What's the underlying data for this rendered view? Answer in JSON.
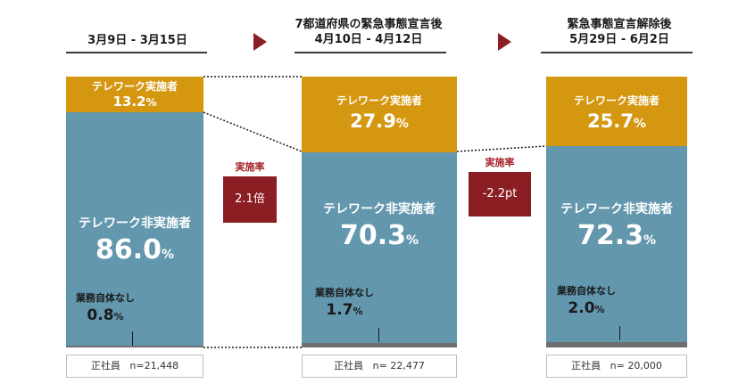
{
  "chart_data": {
    "type": "bar",
    "stacked": true,
    "categories": [
      "3月9日 - 3月15日",
      "4月10日 - 4月12日",
      "5月29日 - 6月2日"
    ],
    "period_headers": [
      {
        "line1": "",
        "line2": "3月9日 - 3月15日"
      },
      {
        "line1": "7都道府県の緊急事態宣言後",
        "line2": "4月10日 - 4月12日"
      },
      {
        "line1": "緊急事態宣言解除後",
        "line2": "5月29日 - 6月2日"
      }
    ],
    "series": [
      {
        "name": "テレワーク実施者",
        "values": [
          13.2,
          27.9,
          25.7
        ],
        "color": "#d59710"
      },
      {
        "name": "テレワーク非実施者",
        "values": [
          86.0,
          70.3,
          72.3
        ],
        "color": "#6397ad"
      },
      {
        "name": "業務自体なし",
        "values": [
          0.8,
          1.7,
          2.0
        ],
        "color": "#6e6e6e"
      }
    ],
    "value_labels": {
      "telework": [
        "13.2",
        "27.9",
        "25.7"
      ],
      "non_telework": [
        "86.0",
        "70.3",
        "72.3"
      ],
      "no_work": [
        "0.8",
        "1.7",
        "2.0"
      ],
      "unit": "%"
    },
    "changes": [
      {
        "label": "実施率",
        "value": "2.1倍"
      },
      {
        "label": "実施率",
        "value": "-2.2pt"
      }
    ],
    "samples": [
      {
        "group": "正社員",
        "n": "n=21,448"
      },
      {
        "group": "正社員",
        "n": "n= 22,477"
      },
      {
        "group": "正社員",
        "n": "n= 20,000"
      }
    ],
    "ylim": [
      0,
      100
    ]
  }
}
